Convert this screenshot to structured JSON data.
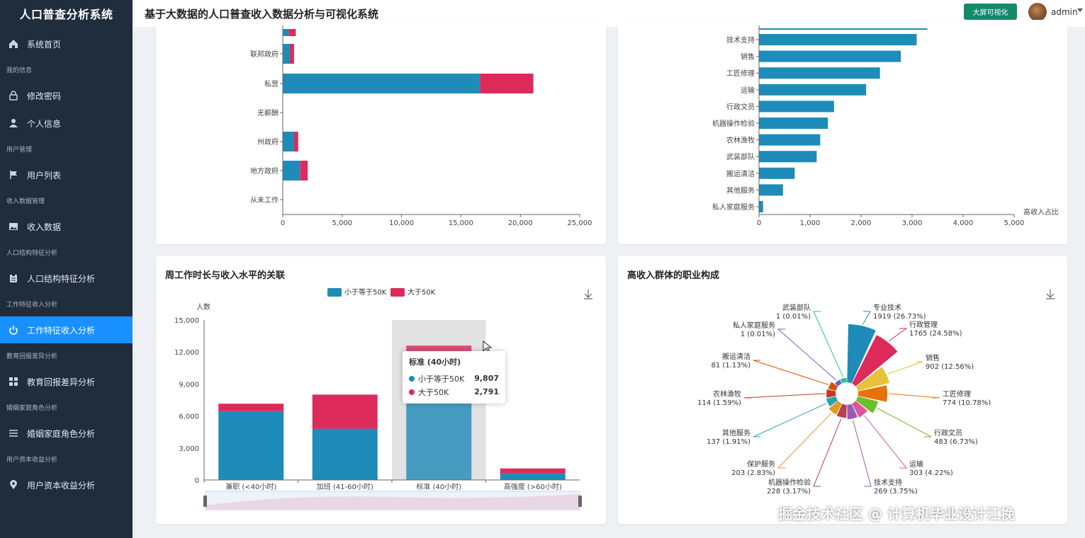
{
  "app": {
    "brand": "人口普查分析系统",
    "page_title": "基于大数据的人口普查收入数据分析与可视化系统",
    "bigscreen_label": "大屏可视化",
    "username": "admin"
  },
  "sidebar": {
    "items": [
      {
        "label": "系统首页",
        "icon": "home-icon"
      },
      {
        "group": "我的信息"
      },
      {
        "label": "修改密码",
        "icon": "lock-icon"
      },
      {
        "label": "个人信息",
        "icon": "user-icon"
      },
      {
        "group": "用户管理"
      },
      {
        "label": "用户列表",
        "icon": "flag-icon"
      },
      {
        "group": "收入数据管理"
      },
      {
        "label": "收入数据",
        "icon": "image-icon"
      },
      {
        "group": "人口结构特征分析"
      },
      {
        "label": "人口结构特征分析",
        "icon": "clipboard-icon"
      },
      {
        "group": "工作特征收入分析"
      },
      {
        "label": "工作特征收入分析",
        "icon": "power-icon",
        "active": true
      },
      {
        "group": "教育回报差异分析"
      },
      {
        "label": "教育回报差异分析",
        "icon": "grid-icon"
      },
      {
        "group": "婚姻家庭角色分析"
      },
      {
        "label": "婚姻家庭角色分析",
        "icon": "list-icon"
      },
      {
        "group": "用户资本收益分析"
      },
      {
        "label": "用户资本收益分析",
        "icon": "pin-icon"
      }
    ]
  },
  "colors": {
    "low": "#1f8bb8",
    "high": "#dc2b5b",
    "sidebar_bg": "#1f2d3d",
    "active": "#1890ff",
    "bigscreen": "#138a6b"
  },
  "cards": {
    "workhours_title": "周工作时长与收入水平的关联",
    "occupation_title": "高收入群体的职业构成"
  },
  "chart_data": [
    {
      "type": "bar",
      "orientation": "horizontal",
      "stacked": true,
      "categories": [
        "联邦政府",
        "私营",
        "无薪酬",
        "州政府",
        "地方政府",
        "从未工作"
      ],
      "series": [
        {
          "color": "#1f8bb8",
          "values": [
            600,
            16600,
            0,
            950,
            1450,
            0
          ]
        },
        {
          "color": "#dc2b5b",
          "values": [
            350,
            4500,
            0,
            350,
            650,
            0
          ]
        }
      ],
      "partial_top_bar": {
        "low": 500,
        "high": 600
      },
      "xticks": [
        "0",
        "5,000",
        "10,000",
        "15,000",
        "20,000",
        "25,000"
      ],
      "xlim": [
        0,
        25000
      ]
    },
    {
      "type": "bar",
      "orientation": "horizontal",
      "categories": [
        "技术支持",
        "销售",
        "工匠修理",
        "运输",
        "行政文员",
        "机器操作检验",
        "农林渔牧",
        "武装部队",
        "搬运清洁",
        "其他服务",
        "私人家庭服务"
      ],
      "values": [
        3090,
        2780,
        2370,
        2100,
        1470,
        1350,
        1200,
        1130,
        700,
        470,
        80
      ],
      "xlabel": "高收入占比",
      "xticks": [
        "0",
        "1,000",
        "2,000",
        "3,000",
        "4,000",
        "5,000"
      ],
      "xlim": [
        0,
        5000
      ]
    },
    {
      "type": "bar",
      "stacked": true,
      "title": "周工作时长与收入水平的关联",
      "categories": [
        "兼职 (<40小时)",
        "加班 (41-60小时)",
        "标准 (40小时)",
        "高强度 (>60小时)"
      ],
      "series": [
        {
          "name": "小于等于50K",
          "color": "#1f8bb8",
          "values": [
            6450,
            4800,
            9807,
            620
          ]
        },
        {
          "name": "大于50K",
          "color": "#dc2b5b",
          "values": [
            700,
            3200,
            2791,
            460
          ]
        }
      ],
      "ylabel": "人数",
      "yticks": [
        "0",
        "3,000",
        "6,000",
        "9,000",
        "12,000",
        "15,000"
      ],
      "ylim": [
        0,
        15000
      ],
      "tooltip": {
        "title": "标准 (40小时)",
        "rows": [
          {
            "name": "小于等于50K",
            "value": "9,807"
          },
          {
            "name": "大于50K",
            "value": "2,791"
          }
        ]
      }
    },
    {
      "type": "pie",
      "rose": true,
      "title": "高收入群体的职业构成",
      "slices": [
        {
          "name": "专业技术",
          "value": 1919,
          "label": "1919 (26.73%)",
          "color": "#1f8bb8"
        },
        {
          "name": "行政管理",
          "value": 1765,
          "label": "1765 (24.58%)",
          "color": "#dc2b5b"
        },
        {
          "name": "销售",
          "value": 902,
          "label": "902 (12.56%)",
          "color": "#e6c23a"
        },
        {
          "name": "工匠修理",
          "value": 774,
          "label": "774 (10.78%)",
          "color": "#e8710a"
        },
        {
          "name": "行政文员",
          "value": 483,
          "label": "483 (6.73%)",
          "color": "#6cbf2c"
        },
        {
          "name": "运输",
          "value": 303,
          "label": "303 (4.22%)",
          "color": "#e0559a"
        },
        {
          "name": "技术支持",
          "value": 269,
          "label": "269 (3.75%)",
          "color": "#9b59b6"
        },
        {
          "name": "机器操作检验",
          "value": 228,
          "label": "228 (3.17%)",
          "color": "#b5434f"
        },
        {
          "name": "保护服务",
          "value": 203,
          "label": "203 (2.83%)",
          "color": "#e69a1e"
        },
        {
          "name": "其他服务",
          "value": 137,
          "label": "137 (1.91%)",
          "color": "#2ea1b3"
        },
        {
          "name": "农林渔牧",
          "value": 114,
          "label": "114 (1.59%)",
          "color": "#c0392b"
        },
        {
          "name": "搬运清洁",
          "value": 81,
          "label": "81 (1.13%)",
          "color": "#d35400"
        },
        {
          "name": "私人家庭服务",
          "value": 1,
          "label": "1 (0.01%)",
          "color": "#6b5fd0"
        },
        {
          "name": "武装部队",
          "value": 1,
          "label": "1 (0.01%)",
          "color": "#27c48d"
        }
      ]
    }
  ],
  "watermark": "掘金技术社区 @ 计算机毕业设计江挽"
}
